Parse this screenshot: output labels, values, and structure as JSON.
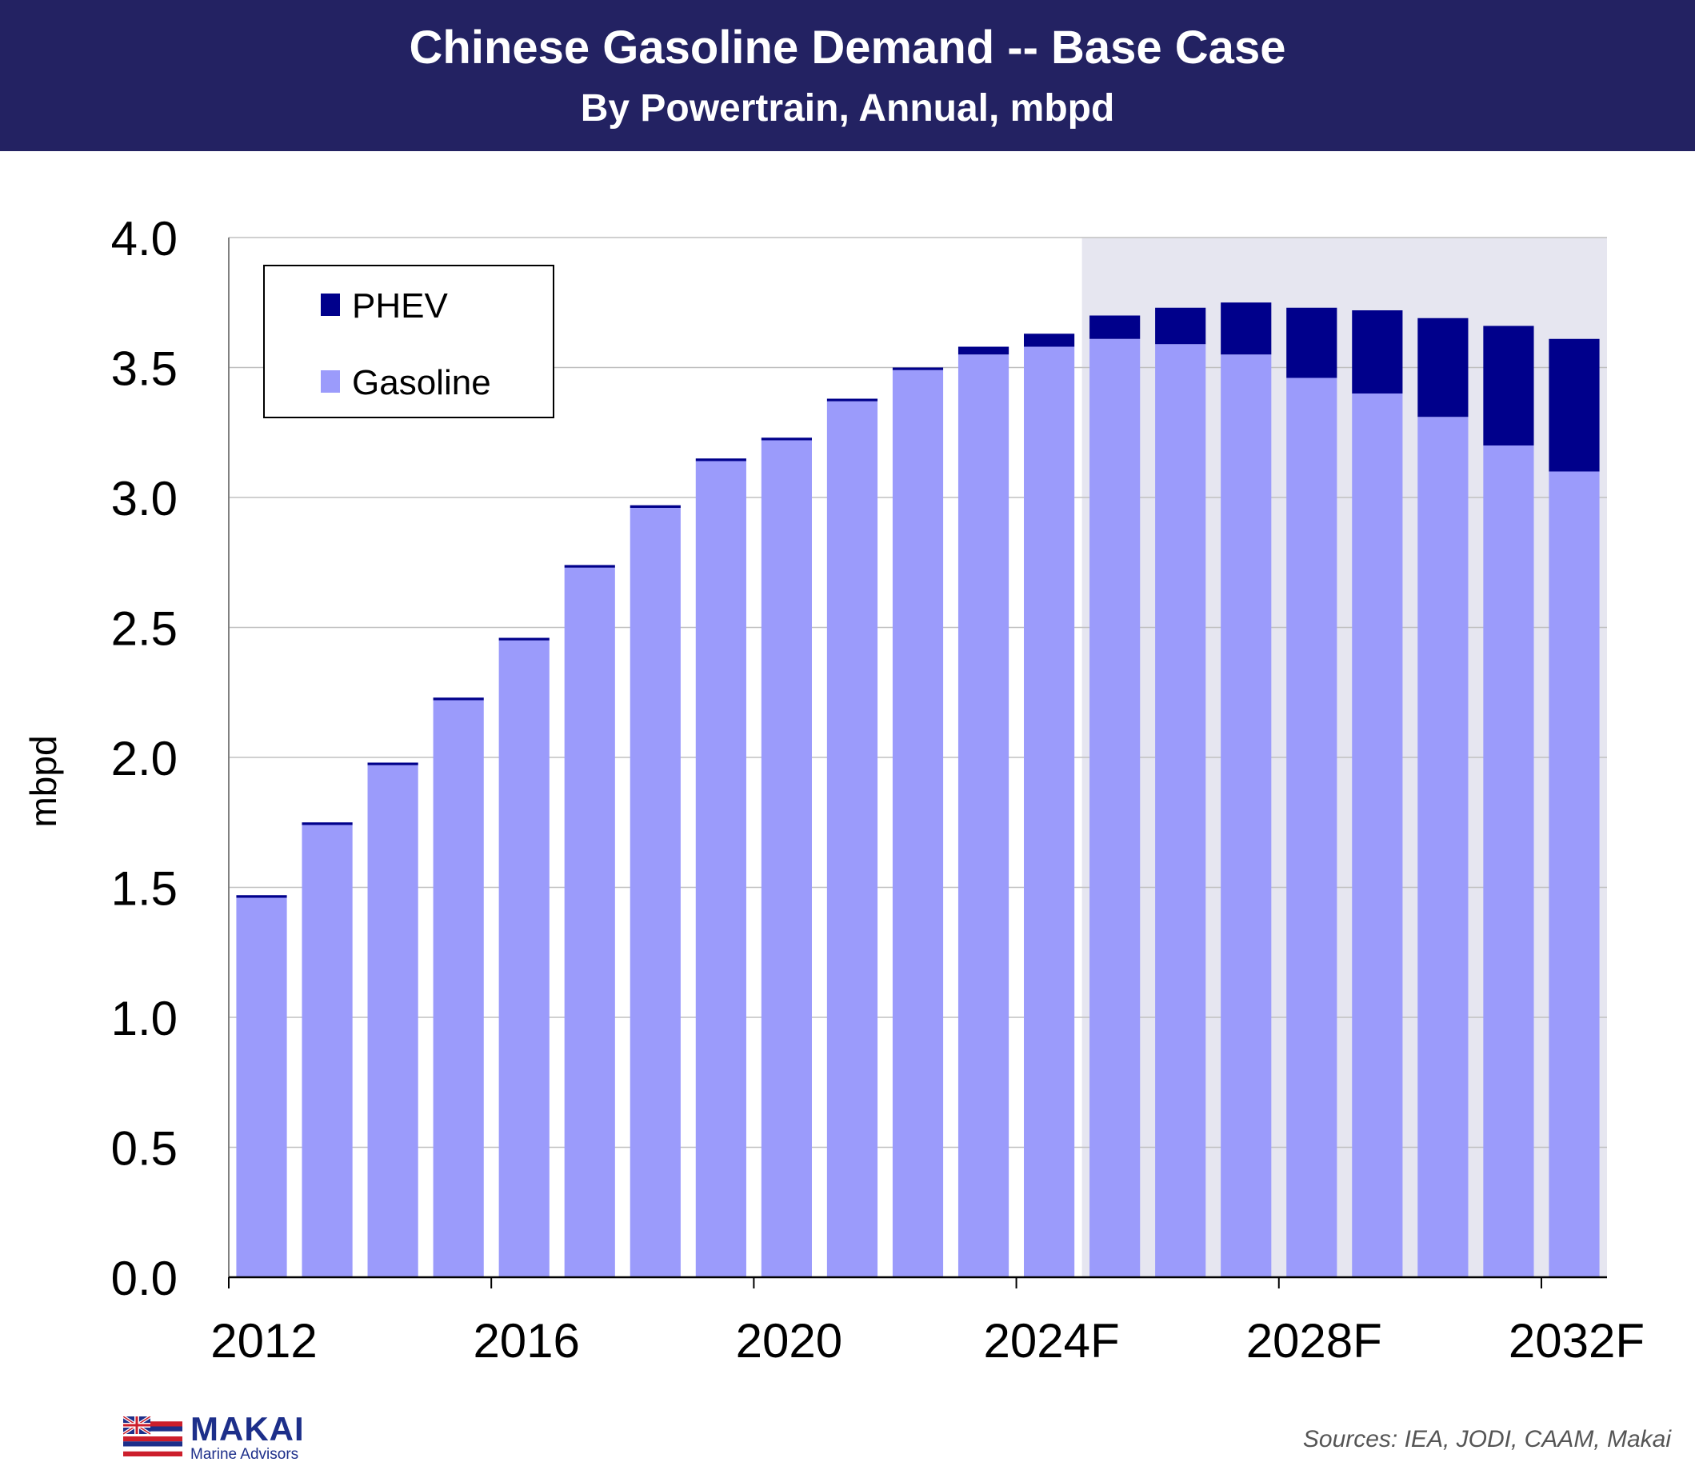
{
  "header": {
    "title": "Chinese Gasoline Demand -- Base Case",
    "subtitle": "By Powertrain, Annual, mbpd"
  },
  "colors": {
    "banner": "#232262",
    "gasoline": "#9b9bfb",
    "phev": "#00008b",
    "forecast_shade": "#e6e6f0",
    "grid": "#c0c0c0"
  },
  "chart_data": {
    "type": "bar",
    "stacked": true,
    "categories": [
      "2012",
      "2013",
      "2014",
      "2015",
      "2016",
      "2017",
      "2018",
      "2019",
      "2020",
      "2021",
      "2022",
      "2023",
      "2024F",
      "2025F",
      "2026F",
      "2027F",
      "2028F",
      "2029F",
      "2030F",
      "2031F",
      "2032F"
    ],
    "x_tick_labels": [
      "2012",
      "2016",
      "2020",
      "2024F",
      "2028F",
      "2032F"
    ],
    "series": [
      {
        "name": "Gasoline",
        "values": [
          1.46,
          1.74,
          1.97,
          2.22,
          2.45,
          2.73,
          2.96,
          3.14,
          3.22,
          3.37,
          3.49,
          3.55,
          3.58,
          3.61,
          3.59,
          3.55,
          3.46,
          3.4,
          3.31,
          3.2,
          3.1
        ]
      },
      {
        "name": "PHEV",
        "values": [
          0.01,
          0.01,
          0.01,
          0.01,
          0.01,
          0.01,
          0.01,
          0.01,
          0.01,
          0.01,
          0.01,
          0.03,
          0.05,
          0.09,
          0.14,
          0.2,
          0.27,
          0.32,
          0.38,
          0.46,
          0.51
        ]
      }
    ],
    "ylabel": "mbpd",
    "ylim": [
      0,
      4.0
    ],
    "y_ticks": [
      "0.0",
      "0.5",
      "1.0",
      "1.5",
      "2.0",
      "2.5",
      "3.0",
      "3.5",
      "4.0"
    ],
    "y_tick_values": [
      0,
      0.5,
      1.0,
      1.5,
      2.0,
      2.5,
      3.0,
      3.5,
      4.0
    ],
    "forecast_shaded_from": "2025F",
    "grid": true,
    "legend_position": "top-left",
    "legend_order": [
      "PHEV",
      "Gasoline"
    ]
  },
  "footer": {
    "logo_name": "MAKAI",
    "logo_tagline": "Marine Advisors",
    "source": "Sources: IEA, JODI, CAAM, Makai"
  }
}
